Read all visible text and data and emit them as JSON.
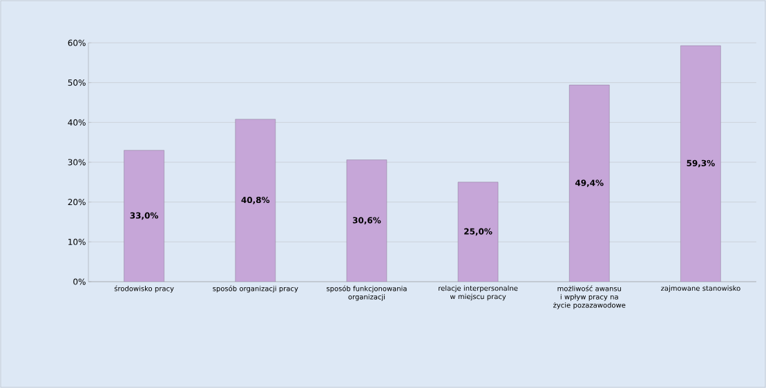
{
  "chart_data": {
    "type": "bar",
    "categories": [
      "środowisko pracy",
      "sposób organizacji pracy",
      "sposób funkcjonowania organizacji",
      "relacje interpersonalne w miejscu pracy",
      "możliwość awansu i wpływ pracy na życie pozazawodowe",
      "zajmowane stanowisko"
    ],
    "values": [
      33.0,
      40.8,
      30.6,
      25.0,
      49.4,
      59.3
    ],
    "value_labels": [
      "33,0%",
      "40,8%",
      "30,6%",
      "25,0%",
      "49,4%",
      "59,3%"
    ],
    "color": "#c6a6d8",
    "ylim": [
      0,
      60
    ],
    "yticks": [
      {
        "value": 0,
        "label": "0%"
      },
      {
        "value": 10,
        "label": "10%"
      },
      {
        "value": 20,
        "label": "20%"
      },
      {
        "value": 30,
        "label": "30%"
      },
      {
        "value": 40,
        "label": "40%"
      },
      {
        "value": 50,
        "label": "50%"
      },
      {
        "value": 60,
        "label": "60%"
      }
    ],
    "grid": "y"
  }
}
